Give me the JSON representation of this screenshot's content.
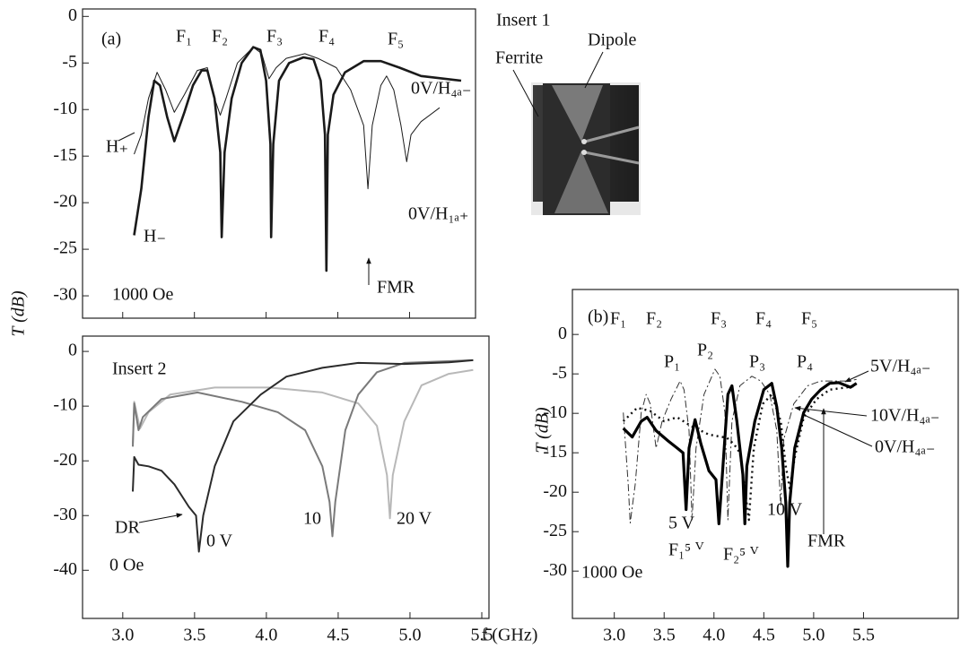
{
  "insert_1": {
    "title": "Insert 1",
    "labels": [
      "Ferrite",
      "Dipole"
    ]
  },
  "chart_data": [
    {
      "type": "line",
      "y_label": "T (dB)",
      "xlim": [
        2.72,
        5.46
      ],
      "ylim": [
        -32.4,
        0.8
      ],
      "xticks": [
        3,
        3.5,
        4,
        4.5,
        5
      ],
      "yticks": [
        0,
        -5,
        -10,
        -15,
        -20,
        -25,
        -30
      ],
      "annotations": [
        "(a)",
        "F₁",
        "F₂",
        "F₃",
        "F₄",
        "F₅",
        "0V/H₄ₐ₋",
        "0V/H₁ₐ₊",
        "FMR",
        "1000 Oe"
      ],
      "series": [
        {
          "name": "H₊",
          "color": "#1a1a1a",
          "line_width": 1,
          "x": [
            3.08,
            3.13,
            3.18,
            3.24,
            3.3,
            3.36,
            3.43,
            3.52,
            3.59,
            3.64,
            3.68,
            3.72,
            3.8,
            3.91,
            3.97,
            4.02,
            4.07,
            4.14,
            4.27,
            4.36,
            4.49,
            4.59,
            4.68,
            4.71,
            4.74,
            4.8,
            4.84,
            4.89,
            4.94,
            4.98,
            5.01,
            5.08,
            5.21
          ],
          "values": [
            -14.8,
            -12.7,
            -8.8,
            -6.0,
            -7.9,
            -10.3,
            -8.4,
            -5.8,
            -5.5,
            -8.8,
            -10.6,
            -8.8,
            -5.0,
            -3.3,
            -4.0,
            -6.7,
            -5.5,
            -4.5,
            -4.0,
            -4.5,
            -5.5,
            -7.9,
            -11.7,
            -18.5,
            -11.7,
            -7.4,
            -6.4,
            -7.9,
            -11.7,
            -15.6,
            -12.7,
            -11.3,
            -9.8
          ]
        },
        {
          "name": "H₋",
          "color": "#1a1a1a",
          "line_width": 2.6,
          "x": [
            3.08,
            3.13,
            3.18,
            3.22,
            3.26,
            3.31,
            3.36,
            3.43,
            3.49,
            3.55,
            3.59,
            3.64,
            3.68,
            3.69,
            3.71,
            3.76,
            3.83,
            3.91,
            3.96,
            4.0,
            4.03,
            4.035,
            4.05,
            4.09,
            4.16,
            4.26,
            4.33,
            4.38,
            4.41,
            4.42,
            4.43,
            4.47,
            4.55,
            4.68,
            4.8,
            4.93,
            5.08,
            5.36
          ],
          "values": [
            -23.5,
            -18.5,
            -10.8,
            -6.9,
            -7.4,
            -10.8,
            -13.4,
            -10.3,
            -7.4,
            -5.8,
            -5.8,
            -8.8,
            -14.6,
            -23.7,
            -14.6,
            -8.8,
            -5.0,
            -3.3,
            -3.6,
            -6.9,
            -13.7,
            -23.7,
            -13.7,
            -6.9,
            -5.0,
            -4.4,
            -4.6,
            -6.9,
            -12.7,
            -27.3,
            -12.7,
            -8.4,
            -6.0,
            -4.8,
            -4.8,
            -5.5,
            -6.4,
            -6.9
          ]
        }
      ]
    },
    {
      "type": "line",
      "xlim": [
        2.72,
        5.55
      ],
      "ylim": [
        -48.8,
        2.8
      ],
      "xticks": [
        {
          "value": 3,
          "label": "3.0"
        },
        {
          "value": 3.5,
          "label": "3.5"
        },
        {
          "value": 4,
          "label": "4.0"
        },
        {
          "value": 4.5,
          "label": "4.5"
        },
        {
          "value": 5,
          "label": "5.0"
        },
        {
          "value": 5.5,
          "label": "5.5"
        }
      ],
      "yticks": [
        0,
        -10,
        -20,
        -30,
        -40
      ],
      "annotations": [
        "Insert 2",
        "DR",
        "0 Oe"
      ],
      "series": [
        {
          "name": "20 V",
          "color": "#b8b8b8",
          "line_width": 2,
          "x": [
            3.07,
            3.08,
            3.12,
            3.18,
            3.33,
            3.64,
            4.02,
            4.39,
            4.64,
            4.77,
            4.84,
            4.86,
            4.88,
            4.96,
            5.08,
            5.27,
            5.44
          ],
          "values": [
            -16.9,
            -9.2,
            -14.1,
            -11.1,
            -7.9,
            -6.6,
            -6.6,
            -7.5,
            -9.5,
            -13.6,
            -22.6,
            -30.5,
            -22.6,
            -12.8,
            -6.2,
            -4.1,
            -3.4
          ]
        },
        {
          "name": "10",
          "color": "#7a7a7a",
          "line_width": 2,
          "x": [
            3.07,
            3.08,
            3.11,
            3.14,
            3.27,
            3.52,
            3.83,
            4.08,
            4.27,
            4.39,
            4.44,
            4.46,
            4.48,
            4.55,
            4.64,
            4.77,
            4.96,
            5.44
          ],
          "values": [
            -17.4,
            -9.5,
            -14.4,
            -12.0,
            -8.7,
            -7.5,
            -9.2,
            -11.1,
            -14.4,
            -21.0,
            -27.5,
            -33.8,
            -27.5,
            -14.4,
            -7.9,
            -3.8,
            -2.1,
            -1.6
          ]
        },
        {
          "name": "0 V",
          "color": "#2b2b2b",
          "line_width": 2,
          "x": [
            3.07,
            3.08,
            3.11,
            3.18,
            3.27,
            3.36,
            3.46,
            3.51,
            3.53,
            3.56,
            3.64,
            3.77,
            3.96,
            4.14,
            4.39,
            4.64,
            4.96,
            5.27,
            5.44
          ],
          "values": [
            -25.6,
            -19.3,
            -20.7,
            -21.0,
            -21.8,
            -24.3,
            -28.4,
            -30.0,
            -36.6,
            -30.0,
            -21.0,
            -12.8,
            -7.9,
            -4.6,
            -3.0,
            -2.1,
            -2.3,
            -2.0,
            -1.6
          ]
        }
      ]
    },
    {
      "type": "line",
      "y_label": "T (dB)",
      "x_label": "f  (GHz)",
      "xlim": [
        2.58,
        6.45
      ],
      "ylim": [
        -36,
        5.7
      ],
      "xticks": [
        {
          "value": 3,
          "label": "3.0"
        },
        {
          "value": 3.5,
          "label": "3.5"
        },
        {
          "value": 4,
          "label": "4.0"
        },
        {
          "value": 4.5,
          "label": "4.5"
        },
        {
          "value": 5,
          "label": "5.0"
        },
        {
          "value": 5.5,
          "label": "5.5"
        }
      ],
      "yticks": [
        0,
        -5,
        -10,
        -15,
        -20,
        -25,
        -30
      ],
      "annotations": [
        "(b)",
        "F₁",
        "F₂",
        "F₃",
        "F₄",
        "F₅",
        "P₁",
        "P₂",
        "P₃",
        "P₄",
        "5 V",
        "F₁⁵ ⱽ",
        "F₂⁵ ⱽ",
        "10 V",
        "FMR",
        "1000 Oe"
      ],
      "series": [
        {
          "name": "5V/H₄ₐ₋",
          "color": "#333333",
          "line_width": 1,
          "dash": "dash-dot",
          "x": [
            3.09,
            3.14,
            3.16,
            3.21,
            3.27,
            3.32,
            3.36,
            3.42,
            3.48,
            3.57,
            3.66,
            3.7,
            3.75,
            3.78,
            3.82,
            3.9,
            4.01,
            4.06,
            4.11,
            4.14,
            4.18,
            4.26,
            4.38,
            4.47,
            4.56,
            4.63,
            4.67,
            4.7,
            4.8,
            4.94,
            5.07,
            5.21,
            5.34,
            5.43
          ],
          "values": [
            -9.9,
            -19.0,
            -23.9,
            -19.0,
            -9.9,
            -7.6,
            -8.8,
            -14.4,
            -11.0,
            -8.2,
            -5.9,
            -7.0,
            -12.2,
            -23.5,
            -14.4,
            -7.6,
            -4.4,
            -5.3,
            -9.9,
            -23.5,
            -11.0,
            -6.5,
            -5.3,
            -5.9,
            -7.6,
            -12.2,
            -21.8,
            -13.3,
            -8.8,
            -6.5,
            -5.9,
            -5.9,
            -5.9,
            -5.7
          ]
        },
        {
          "name": "10V/H₄ₐ₋",
          "color": "#111111",
          "line_width": 2.4,
          "dash": "dotted",
          "x": [
            3.09,
            3.23,
            3.36,
            3.5,
            3.63,
            3.77,
            3.95,
            4.13,
            4.2,
            4.26,
            4.35,
            4.4,
            4.49,
            4.58,
            4.67,
            4.72,
            4.76,
            4.81,
            4.9,
            5.03,
            5.16,
            5.34,
            5.43
          ],
          "values": [
            -11.0,
            -9.3,
            -9.7,
            -11.0,
            -10.5,
            -11.6,
            -12.7,
            -13.1,
            -13.9,
            -15.0,
            -23.5,
            -14.4,
            -8.8,
            -7.6,
            -11.0,
            -16.7,
            -19.5,
            -15.6,
            -10.5,
            -8.2,
            -7.0,
            -6.7,
            -6.5
          ]
        },
        {
          "name": "0V/H₄ₐ₋",
          "color": "#000000",
          "line_width": 3.2,
          "x": [
            3.09,
            3.18,
            3.27,
            3.33,
            3.42,
            3.54,
            3.63,
            3.69,
            3.72,
            3.75,
            3.81,
            3.87,
            3.95,
            4.02,
            4.05,
            4.09,
            4.14,
            4.18,
            4.23,
            4.29,
            4.31,
            4.33,
            4.41,
            4.5,
            4.58,
            4.63,
            4.68,
            4.72,
            4.74,
            4.76,
            4.81,
            4.9,
            4.98,
            5.07,
            5.16,
            5.25,
            5.37,
            5.43
          ],
          "values": [
            -11.9,
            -13.0,
            -11.0,
            -10.5,
            -12.2,
            -13.5,
            -14.4,
            -15.0,
            -22.2,
            -14.4,
            -10.8,
            -13.9,
            -17.3,
            -18.4,
            -24.0,
            -16.7,
            -7.6,
            -6.5,
            -11.0,
            -17.8,
            -24.0,
            -16.7,
            -11.0,
            -7.0,
            -6.2,
            -9.2,
            -14.4,
            -21.3,
            -29.4,
            -21.3,
            -14.4,
            -9.9,
            -8.2,
            -7.0,
            -6.2,
            -6.1,
            -6.7,
            -6.2
          ]
        }
      ]
    }
  ]
}
